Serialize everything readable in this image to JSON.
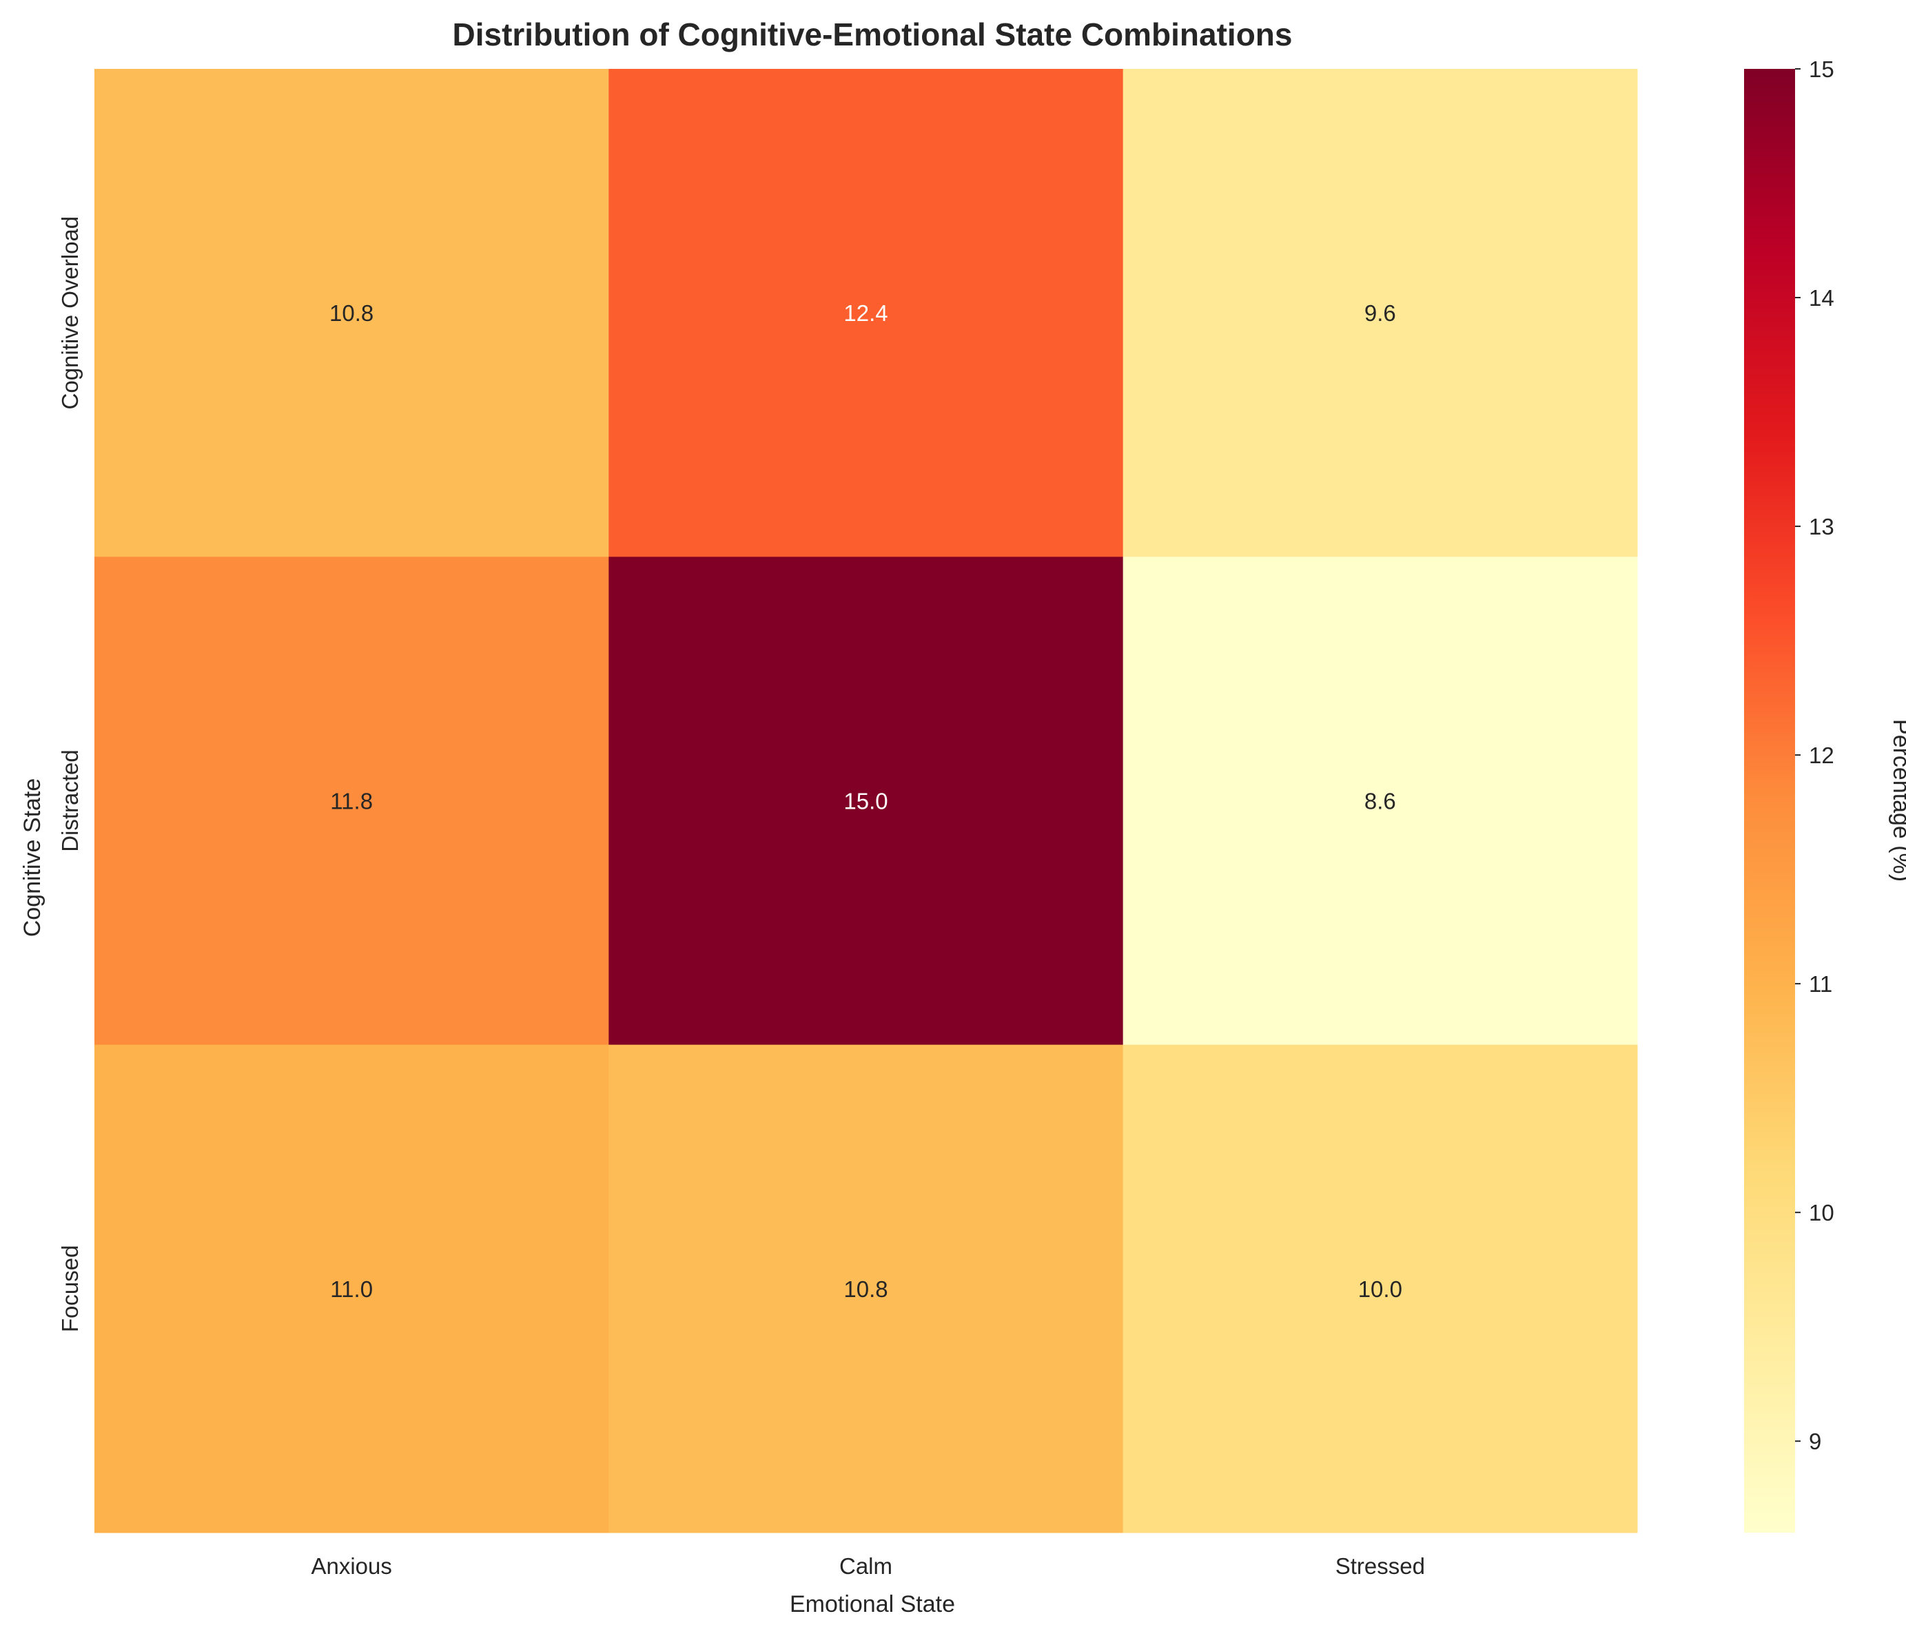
{
  "chart_data": {
    "type": "heatmap",
    "title": "Distribution of Cognitive-Emotional State Combinations",
    "xlabel": "Emotional State",
    "ylabel": "Cognitive State",
    "x_categories": [
      "Anxious",
      "Calm",
      "Stressed"
    ],
    "y_categories": [
      "Cognitive Overload",
      "Distracted",
      "Focused"
    ],
    "values": [
      [
        10.8,
        12.4,
        9.6
      ],
      [
        11.8,
        15.0,
        8.6
      ],
      [
        11.0,
        10.8,
        10.0
      ]
    ],
    "value_labels": [
      [
        "10.8",
        "12.4",
        "9.6"
      ],
      [
        "11.8",
        "15.0",
        "8.6"
      ],
      [
        "11.0",
        "10.8",
        "10.0"
      ]
    ],
    "colorbar": {
      "label": "Percentage (%)",
      "range": [
        8.6,
        15.0
      ],
      "ticks": [
        "9",
        "10",
        "11",
        "12",
        "13",
        "14",
        "15"
      ],
      "colormap": "YlOrRd"
    },
    "grid": false
  }
}
